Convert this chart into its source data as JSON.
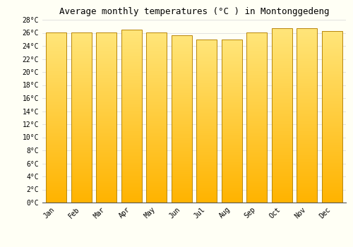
{
  "months": [
    "Jan",
    "Feb",
    "Mar",
    "Apr",
    "May",
    "Jun",
    "Jul",
    "Aug",
    "Sep",
    "Oct",
    "Nov",
    "Dec"
  ],
  "values": [
    26.1,
    26.1,
    26.1,
    26.5,
    26.1,
    25.6,
    25.0,
    25.0,
    26.1,
    26.7,
    26.7,
    26.3
  ],
  "bar_color_bottom": "#FFB300",
  "bar_color_top": "#FFE066",
  "bar_edge_color": "#B8860B",
  "title": "Average monthly temperatures (°C ) in Montonggedeng",
  "ylim": [
    0,
    28
  ],
  "yticks": [
    0,
    2,
    4,
    6,
    8,
    10,
    12,
    14,
    16,
    18,
    20,
    22,
    24,
    26,
    28
  ],
  "title_fontsize": 9,
  "tick_fontsize": 7,
  "background_color": "#FFFFF5",
  "grid_color": "#dddddd",
  "font_family": "monospace"
}
